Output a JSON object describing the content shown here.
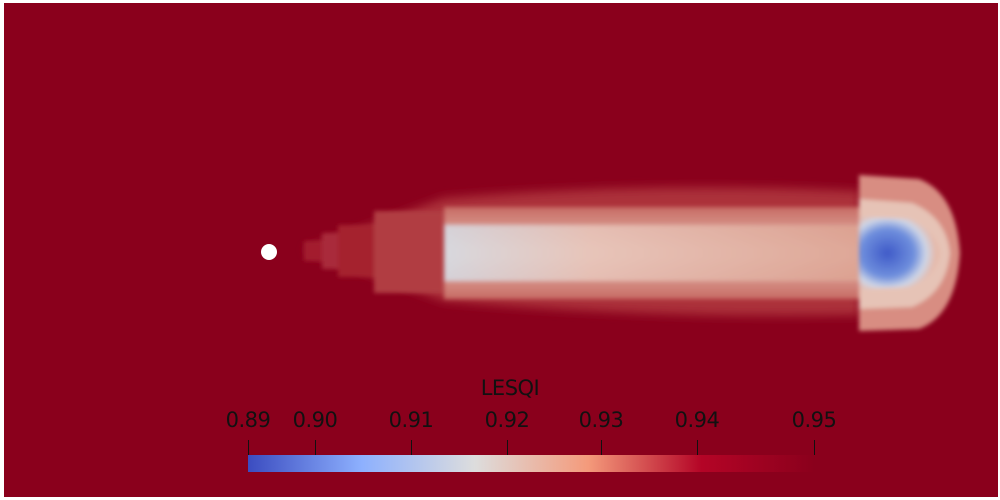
{
  "render_view": {
    "background_color": "#8a001c",
    "probe_point_color": "#ffffff"
  },
  "color_legend": {
    "title": "LESQI",
    "range": [
      0.89,
      0.95
    ],
    "ticks": [
      {
        "value": 0.89,
        "label": "0.89"
      },
      {
        "value": 0.9,
        "label": "0.90"
      },
      {
        "value": 0.91,
        "label": "0.91"
      },
      {
        "value": 0.92,
        "label": "0.92"
      },
      {
        "value": 0.93,
        "label": "0.93"
      },
      {
        "value": 0.94,
        "label": "0.94"
      },
      {
        "value": 0.95,
        "label": "0.95"
      }
    ],
    "colormap": [
      "#3b4cc0",
      "#8db0fe",
      "#dddddd",
      "#f49a7b",
      "#b40426",
      "#8a001c"
    ]
  }
}
